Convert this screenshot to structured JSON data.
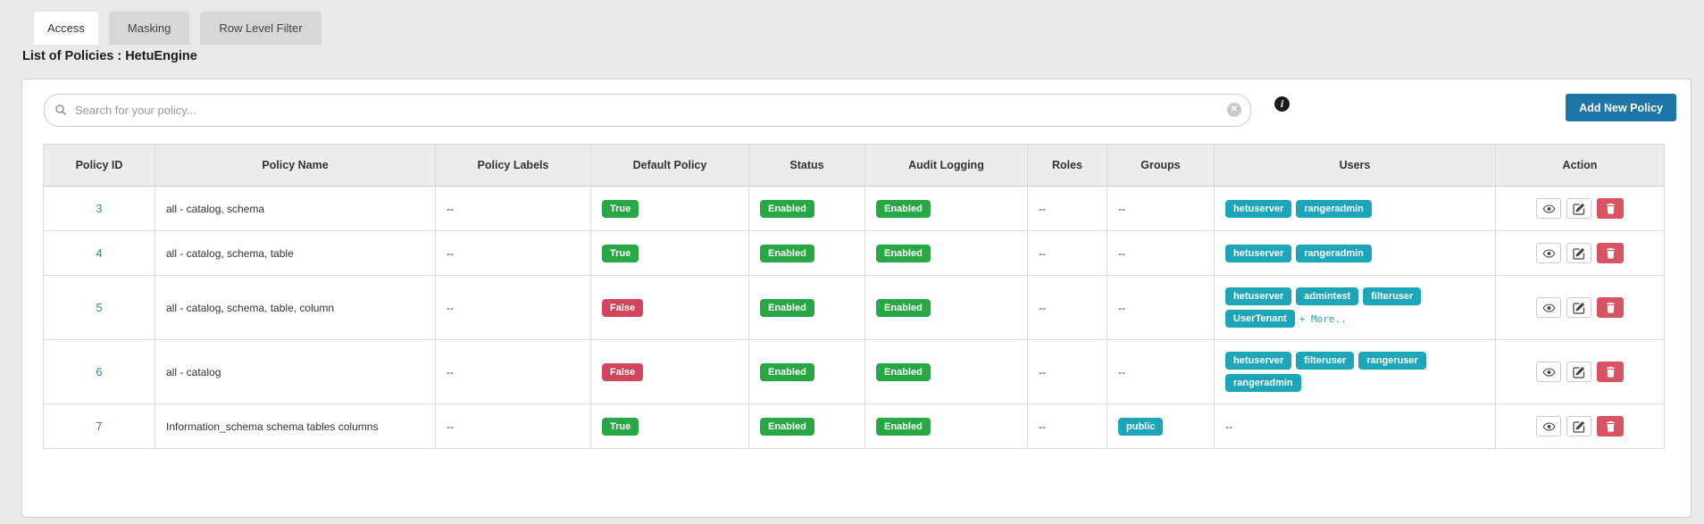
{
  "tabs": [
    {
      "label": "Access",
      "active": true
    },
    {
      "label": "Masking",
      "active": false
    },
    {
      "label": "Row Level Filter",
      "active": false
    }
  ],
  "page_title": "List of Policies : HetuEngine",
  "toolbar": {
    "search_placeholder": "Search for your policy...",
    "search_value": "",
    "clear_icon_glyph": "✕",
    "info_icon_glyph": "i",
    "add_button_label": "Add New Policy"
  },
  "colors": {
    "accent_blue": "#1e75a8",
    "link_blue": "#337ab7",
    "badge_green": "#28a745",
    "badge_red": "#d3455b",
    "badge_teal": "#1da6ba",
    "delete_red": "#d95463"
  },
  "table": {
    "columns": [
      "Policy ID",
      "Policy Name",
      "Policy Labels",
      "Default Policy",
      "Status",
      "Audit Logging",
      "Roles",
      "Groups",
      "Users",
      "Action"
    ],
    "empty_value": "--",
    "action_buttons": [
      "view",
      "edit",
      "delete"
    ],
    "rows": [
      {
        "policy_id": "3",
        "policy_name": "all - catalog, schema",
        "policy_labels": "--",
        "default_policy": "True",
        "status": "Enabled",
        "audit_logging": "Enabled",
        "roles": "--",
        "groups": [],
        "users": [
          "hetuserver",
          "rangeradmin"
        ],
        "users_more": ""
      },
      {
        "policy_id": "4",
        "policy_name": "all - catalog, schema, table",
        "policy_labels": "--",
        "default_policy": "True",
        "status": "Enabled",
        "audit_logging": "Enabled",
        "roles": "--",
        "groups": [],
        "users": [
          "hetuserver",
          "rangeradmin"
        ],
        "users_more": ""
      },
      {
        "policy_id": "5",
        "policy_name": "all - catalog, schema, table, column",
        "policy_labels": "--",
        "default_policy": "False",
        "status": "Enabled",
        "audit_logging": "Enabled",
        "roles": "--",
        "groups": [],
        "users": [
          "hetuserver",
          "admintest",
          "filteruser",
          "UserTenant"
        ],
        "users_more": "+ More.."
      },
      {
        "policy_id": "6",
        "policy_name": "all - catalog",
        "policy_labels": "--",
        "default_policy": "False",
        "status": "Enabled",
        "audit_logging": "Enabled",
        "roles": "--",
        "groups": [],
        "users": [
          "hetuserver",
          "filteruser",
          "rangeruser",
          "rangeradmin"
        ],
        "users_more": ""
      },
      {
        "policy_id": "7",
        "policy_name": "Information_schema schema tables columns",
        "policy_labels": "--",
        "default_policy": "True",
        "status": "Enabled",
        "audit_logging": "Enabled",
        "roles": "--",
        "groups": [
          "public"
        ],
        "users": [],
        "users_more": ""
      }
    ]
  }
}
